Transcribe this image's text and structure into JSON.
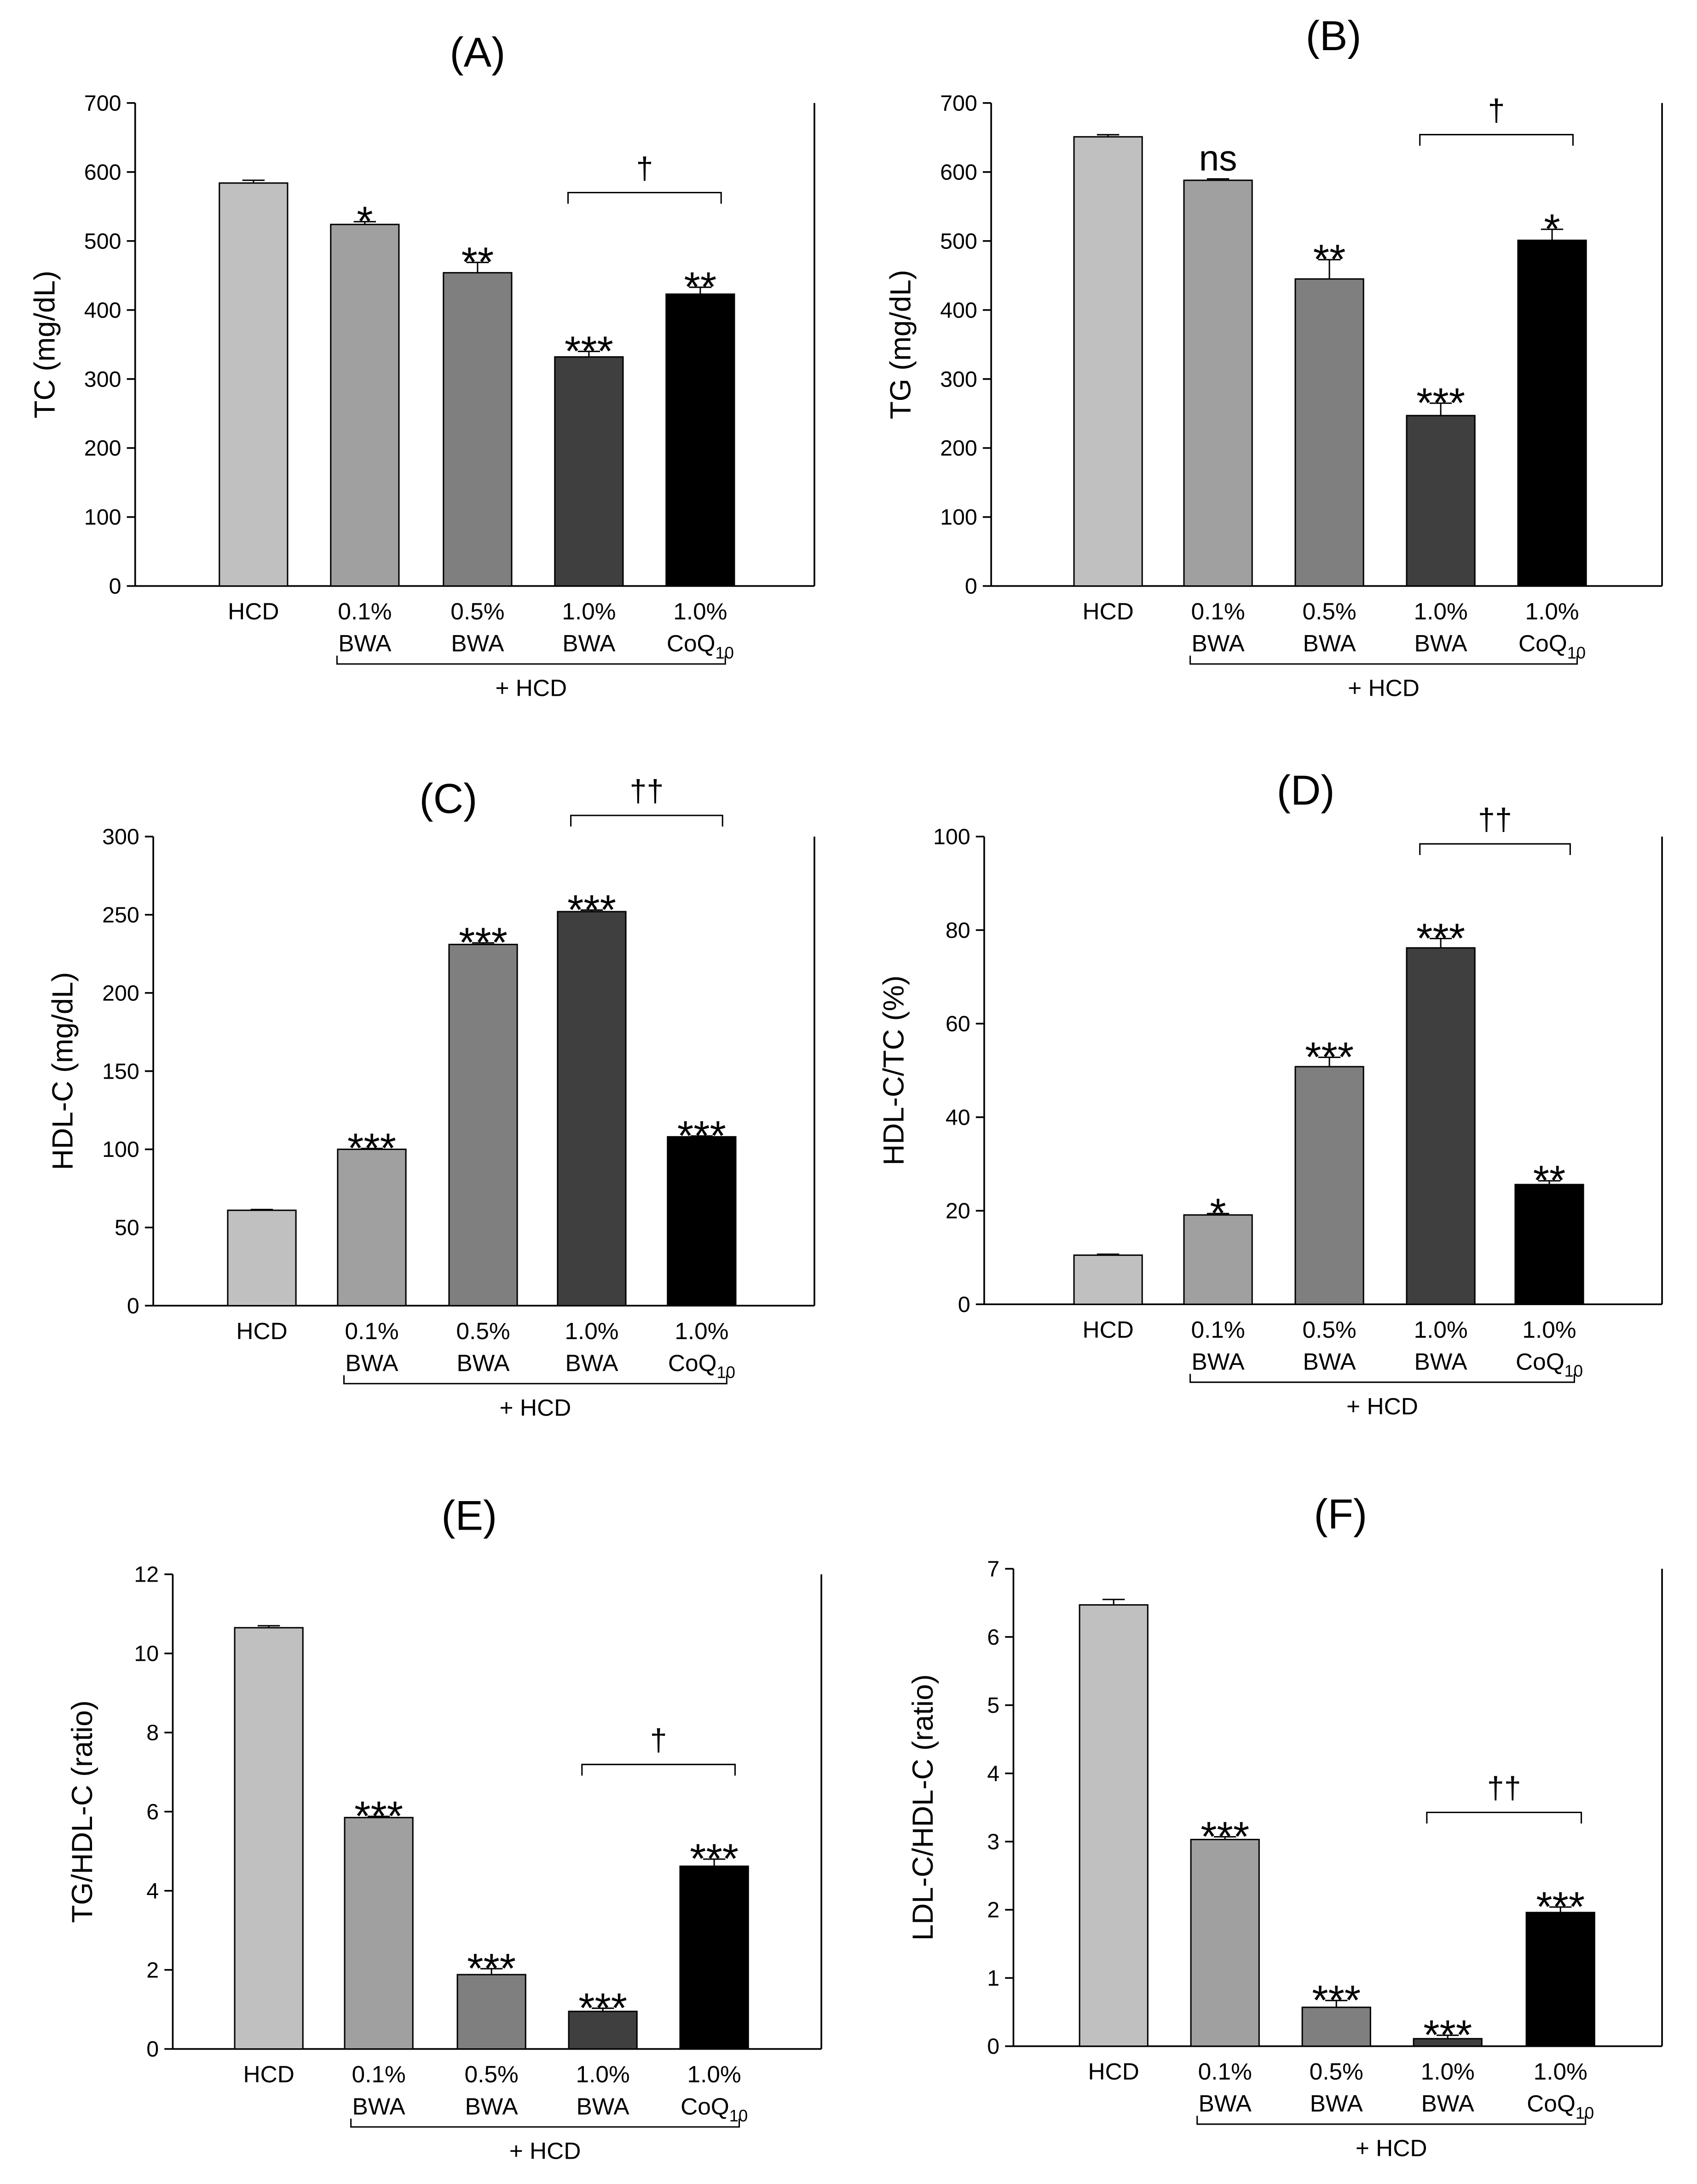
{
  "figure": {
    "bar_colors": [
      "#c0c0c0",
      "#a0a0a0",
      "#7f7f7f",
      "#3f3f3f",
      "#000000"
    ],
    "axis_color": "#000000",
    "background": "#ffffff"
  },
  "chart_data": [
    {
      "panel": "A",
      "title": "(A)",
      "type": "bar",
      "ylabel": "TC (mg/dL)",
      "ylim": [
        0,
        700
      ],
      "yticks": [
        0,
        100,
        200,
        300,
        400,
        500,
        600,
        700
      ],
      "categories": [
        [
          "HCD"
        ],
        [
          "0.1%",
          "BWA"
        ],
        [
          "0.5%",
          "BWA"
        ],
        [
          "1.0%",
          "BWA"
        ],
        [
          "1.0%",
          "CoQ10"
        ]
      ],
      "values": [
        584,
        524,
        454,
        332,
        423
      ],
      "errors": [
        4,
        4,
        15,
        8,
        10
      ],
      "significance": [
        "",
        "*",
        "**",
        "***",
        "**"
      ],
      "comparison": {
        "from": 3,
        "to": 4,
        "label": "†"
      },
      "group_label": "+ HCD"
    },
    {
      "panel": "B",
      "title": "(B)",
      "type": "bar",
      "ylabel": "TG (mg/dL)",
      "ylim": [
        0,
        700
      ],
      "yticks": [
        0,
        100,
        200,
        300,
        400,
        500,
        600,
        700
      ],
      "categories": [
        [
          "HCD"
        ],
        [
          "0.1%",
          "BWA"
        ],
        [
          "0.5%",
          "BWA"
        ],
        [
          "1.0%",
          "BWA"
        ],
        [
          "1.0%",
          "CoQ10"
        ]
      ],
      "values": [
        651,
        588,
        445,
        247,
        501
      ],
      "errors": [
        3,
        2,
        28,
        18,
        16
      ],
      "significance": [
        "",
        "ns",
        "**",
        "***",
        "*"
      ],
      "comparison": {
        "from": 3,
        "to": 4,
        "label": "†"
      },
      "group_label": "+ HCD"
    },
    {
      "panel": "C",
      "title": "(C)",
      "type": "bar",
      "ylabel": "HDL-C (mg/dL)",
      "ylim": [
        0,
        300
      ],
      "yticks": [
        0,
        50,
        100,
        150,
        200,
        250,
        300
      ],
      "categories": [
        [
          "HCD"
        ],
        [
          "0.1%",
          "BWA"
        ],
        [
          "0.5%",
          "BWA"
        ],
        [
          "1.0%",
          "BWA"
        ],
        [
          "1.0%",
          "CoQ10"
        ]
      ],
      "values": [
        61,
        100,
        231,
        252,
        108
      ],
      "errors": [
        0.5,
        0.5,
        1,
        1,
        0.5
      ],
      "significance": [
        "",
        "***",
        "***",
        "***",
        "***"
      ],
      "comparison": {
        "from": 3,
        "to": 4,
        "label": "††"
      },
      "group_label": "+ HCD"
    },
    {
      "panel": "D",
      "title": "(D)",
      "type": "bar",
      "ylabel": "HDL-C/TC (%)",
      "ylim": [
        0,
        100
      ],
      "yticks": [
        0,
        20,
        40,
        60,
        80,
        100
      ],
      "categories": [
        [
          "HCD"
        ],
        [
          "0.1%",
          "BWA"
        ],
        [
          "0.5%",
          "BWA"
        ],
        [
          "1.0%",
          "BWA"
        ],
        [
          "1.0%",
          "CoQ10"
        ]
      ],
      "values": [
        10.5,
        19.1,
        50.8,
        76.2,
        25.6
      ],
      "errors": [
        0.2,
        0.3,
        2.0,
        2.0,
        0.8
      ],
      "significance": [
        "",
        "*",
        "***",
        "***",
        "**"
      ],
      "comparison": {
        "from": 3,
        "to": 4,
        "label": "††"
      },
      "group_label": "+ HCD"
    },
    {
      "panel": "E",
      "title": "(E)",
      "type": "bar",
      "ylabel": "TG/HDL-C (ratio)",
      "ylim": [
        0,
        12
      ],
      "yticks": [
        0,
        2,
        4,
        6,
        8,
        10,
        12
      ],
      "categories": [
        [
          "HCD"
        ],
        [
          "0.1%",
          "BWA"
        ],
        [
          "0.5%",
          "BWA"
        ],
        [
          "1.0%",
          "BWA"
        ],
        [
          "1.0%",
          "CoQ10"
        ]
      ],
      "values": [
        10.65,
        5.85,
        1.88,
        0.95,
        4.62
      ],
      "errors": [
        0.05,
        0.03,
        0.15,
        0.08,
        0.18
      ],
      "significance": [
        "",
        "***",
        "***",
        "***",
        "***"
      ],
      "comparison": {
        "from": 3,
        "to": 4,
        "label": "†"
      },
      "group_label": "+ HCD"
    },
    {
      "panel": "F",
      "title": "(F)",
      "type": "bar",
      "ylabel": "LDL-C/HDL-C (ratio)",
      "ylim": [
        0,
        7
      ],
      "yticks": [
        0,
        1,
        2,
        3,
        4,
        5,
        6,
        7
      ],
      "categories": [
        [
          "HCD"
        ],
        [
          "0.1%",
          "BWA"
        ],
        [
          "0.5%",
          "BWA"
        ],
        [
          "1.0%",
          "BWA"
        ],
        [
          "1.0%",
          "CoQ10"
        ]
      ],
      "values": [
        6.47,
        3.03,
        0.57,
        0.11,
        1.96
      ],
      "errors": [
        0.08,
        0.04,
        0.1,
        0.05,
        0.08
      ],
      "significance": [
        "",
        "***",
        "***",
        "***",
        "***"
      ],
      "comparison": {
        "from": 3,
        "to": 4,
        "label": "††"
      },
      "group_label": "+ HCD"
    }
  ]
}
